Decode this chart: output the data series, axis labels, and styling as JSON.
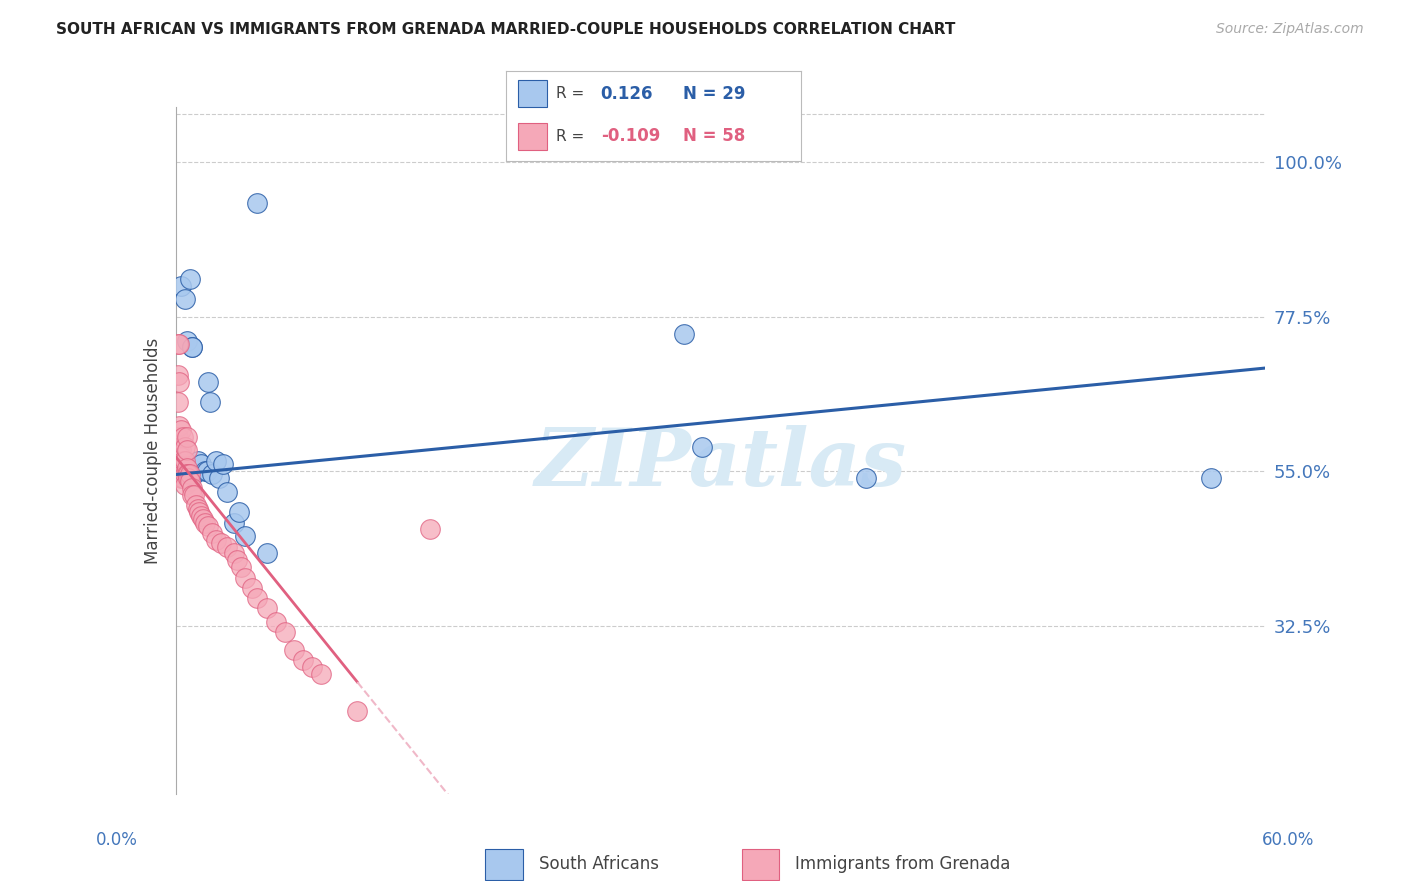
{
  "title": "SOUTH AFRICAN VS IMMIGRANTS FROM GRENADA MARRIED-COUPLE HOUSEHOLDS CORRELATION CHART",
  "source": "Source: ZipAtlas.com",
  "ylabel": "Married-couple Households",
  "ytick_vals": [
    0.325,
    0.55,
    0.775,
    1.0
  ],
  "ytick_labels": [
    "32.5%",
    "55.0%",
    "77.5%",
    "100.0%"
  ],
  "xlim": [
    0.0,
    0.6
  ],
  "ylim": [
    0.08,
    1.08
  ],
  "blue_color": "#A8C8EE",
  "pink_color": "#F5A8B8",
  "trend_blue_color": "#2B5EA7",
  "trend_pink_color": "#E06080",
  "trend_pink_dashed_color": "#F0B8C8",
  "axis_color": "#AAAAAA",
  "grid_color": "#CCCCCC",
  "label_color": "#4477BB",
  "title_color": "#222222",
  "source_color": "#AAAAAA",
  "watermark_color": "#D8EAF5",
  "blue_r": 0.126,
  "blue_n": 29,
  "pink_r": -0.109,
  "pink_n": 58,
  "blue_points_x": [
    0.001,
    0.003,
    0.004,
    0.005,
    0.006,
    0.008,
    0.009,
    0.009,
    0.01,
    0.012,
    0.014,
    0.016,
    0.017,
    0.018,
    0.019,
    0.02,
    0.022,
    0.024,
    0.026,
    0.028,
    0.032,
    0.035,
    0.038,
    0.045,
    0.05,
    0.28,
    0.29,
    0.38,
    0.57
  ],
  "blue_points_y": [
    0.545,
    0.82,
    0.56,
    0.8,
    0.74,
    0.83,
    0.73,
    0.73,
    0.545,
    0.565,
    0.56,
    0.55,
    0.55,
    0.68,
    0.65,
    0.545,
    0.565,
    0.54,
    0.56,
    0.52,
    0.475,
    0.49,
    0.455,
    0.94,
    0.43,
    0.75,
    0.585,
    0.54,
    0.54
  ],
  "pink_points_x": [
    0.001,
    0.001,
    0.001,
    0.001,
    0.001,
    0.002,
    0.002,
    0.002,
    0.002,
    0.003,
    0.003,
    0.003,
    0.003,
    0.004,
    0.004,
    0.004,
    0.004,
    0.005,
    0.005,
    0.005,
    0.005,
    0.006,
    0.006,
    0.006,
    0.006,
    0.007,
    0.007,
    0.008,
    0.008,
    0.009,
    0.009,
    0.01,
    0.011,
    0.012,
    0.013,
    0.014,
    0.015,
    0.016,
    0.018,
    0.02,
    0.022,
    0.025,
    0.028,
    0.032,
    0.034,
    0.036,
    0.038,
    0.042,
    0.045,
    0.05,
    0.055,
    0.06,
    0.065,
    0.07,
    0.075,
    0.08,
    0.1,
    0.14
  ],
  "pink_points_y": [
    0.735,
    0.69,
    0.65,
    0.6,
    0.575,
    0.735,
    0.68,
    0.615,
    0.58,
    0.61,
    0.58,
    0.57,
    0.54,
    0.6,
    0.565,
    0.545,
    0.54,
    0.585,
    0.565,
    0.545,
    0.53,
    0.6,
    0.58,
    0.555,
    0.545,
    0.545,
    0.54,
    0.545,
    0.535,
    0.525,
    0.515,
    0.515,
    0.5,
    0.495,
    0.49,
    0.485,
    0.48,
    0.475,
    0.47,
    0.46,
    0.45,
    0.445,
    0.44,
    0.43,
    0.42,
    0.41,
    0.395,
    0.38,
    0.365,
    0.35,
    0.33,
    0.315,
    0.29,
    0.275,
    0.265,
    0.255,
    0.2,
    0.465
  ]
}
